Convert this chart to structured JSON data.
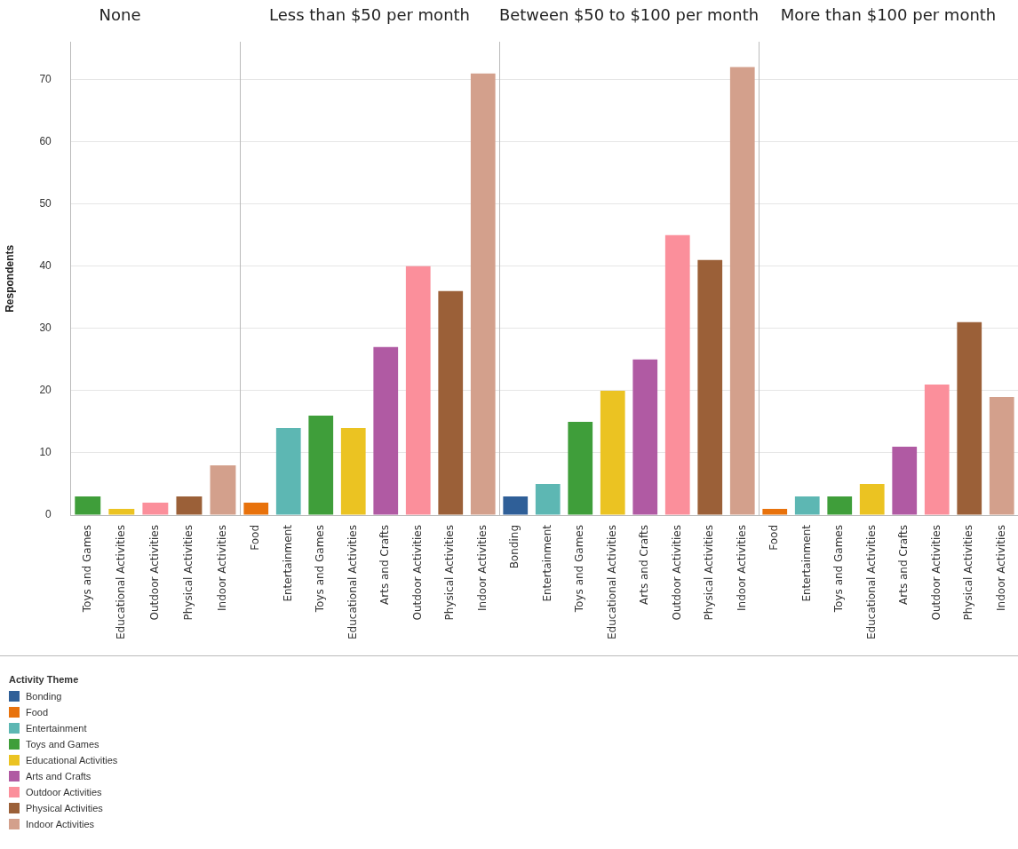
{
  "chart_data": [
    {
      "type": "bar",
      "title": "None",
      "ylabel": "Respondents",
      "categories": [
        "Toys and Games",
        "Educational Activities",
        "Outdoor Activities",
        "Physical Activities",
        "Indoor Activities"
      ],
      "stacked": true,
      "ylim": [
        0,
        76
      ],
      "yticks": [
        0,
        10,
        20,
        30,
        40,
        50,
        60,
        70
      ],
      "grid": "y",
      "legend": "bottom left",
      "legend_title": "Activity Theme",
      "series": [
        {
          "name": "Bonding",
          "color": "#2f5f98",
          "values": [
            null,
            null,
            null,
            null,
            null
          ]
        },
        {
          "name": "Food",
          "color": "#e8720c",
          "values": [
            null,
            null,
            null,
            null,
            null
          ]
        },
        {
          "name": "Entertainment",
          "color": "#5db7b3",
          "values": [
            null,
            null,
            null,
            null,
            null
          ]
        },
        {
          "name": "Toys and Games",
          "color": "#3f9e3a",
          "values": [
            3,
            null,
            null,
            null,
            null
          ]
        },
        {
          "name": "Educational Activities",
          "color": "#ebc322",
          "values": [
            null,
            1,
            null,
            null,
            null
          ]
        },
        {
          "name": "Arts and Crafts",
          "color": "#b05aa3",
          "values": [
            null,
            null,
            null,
            null,
            null
          ]
        },
        {
          "name": "Outdoor Activities",
          "color": "#fb8f9b",
          "values": [
            null,
            null,
            2,
            null,
            null
          ]
        },
        {
          "name": "Physical Activities",
          "color": "#9b6038",
          "values": [
            null,
            null,
            null,
            3,
            null
          ]
        },
        {
          "name": "Indoor Activities",
          "color": "#d3a08c",
          "values": [
            null,
            null,
            null,
            null,
            8
          ]
        }
      ]
    },
    {
      "type": "bar",
      "title": "Less than $50 per month",
      "categories": [
        "Food",
        "Entertainment",
        "Toys and Games",
        "Educational Activities",
        "Arts and Crafts",
        "Outdoor Activities",
        "Physical Activities",
        "Indoor Activities"
      ],
      "stacked": true,
      "ylim": [
        0,
        76
      ],
      "yticks": [
        0,
        10,
        20,
        30,
        40,
        50,
        60,
        70
      ],
      "tick_labels": "x",
      "grid": "y",
      "series": [
        {
          "color": "#e8720c",
          "values": [
            2,
            null,
            null,
            null,
            null,
            null,
            null,
            null
          ]
        },
        {
          "color": "#5db7b3",
          "values": [
            null,
            14,
            null,
            null,
            null,
            null,
            null,
            null
          ]
        },
        {
          "color": "#3f9e3a",
          "values": [
            null,
            null,
            16,
            null,
            null,
            null,
            null,
            null
          ]
        },
        {
          "color": "#ebc322",
          "values": [
            null,
            null,
            null,
            14,
            null,
            null,
            null,
            null
          ]
        },
        {
          "color": "#b05aa3",
          "values": [
            null,
            null,
            null,
            null,
            27,
            null,
            null,
            null
          ]
        },
        {
          "color": "#fb8f9b",
          "values": [
            null,
            null,
            null,
            null,
            null,
            40,
            null,
            null
          ]
        },
        {
          "color": "#9b6038",
          "values": [
            null,
            null,
            null,
            null,
            null,
            null,
            36,
            null
          ]
        },
        {
          "color": "#d3a08c",
          "values": [
            null,
            null,
            null,
            null,
            null,
            null,
            null,
            71
          ]
        }
      ]
    },
    {
      "type": "bar",
      "title": "Between $50 to $100 per month",
      "categories": [
        "Bonding",
        "Entertainment",
        "Toys and Games",
        "Educational Activities",
        "Arts and Crafts",
        "Outdoor Activities",
        "Physical Activities",
        "Indoor Activities"
      ],
      "stacked": true,
      "ylim": [
        0,
        76
      ],
      "yticks": [
        0,
        10,
        20,
        30,
        40,
        50,
        60,
        70
      ],
      "tick_labels": "x",
      "grid": "y",
      "series": [
        {
          "color": "#2f5f98",
          "values": [
            3,
            null,
            null,
            null,
            null,
            null,
            null,
            null
          ]
        },
        {
          "color": "#5db7b3",
          "values": [
            null,
            5,
            null,
            null,
            null,
            null,
            null,
            null
          ]
        },
        {
          "color": "#3f9e3a",
          "values": [
            null,
            null,
            15,
            null,
            null,
            null,
            null,
            null
          ]
        },
        {
          "color": "#ebc322",
          "values": [
            null,
            null,
            null,
            20,
            null,
            null,
            null,
            null
          ]
        },
        {
          "color": "#b05aa3",
          "values": [
            null,
            null,
            null,
            null,
            25,
            null,
            null,
            null
          ]
        },
        {
          "color": "#fb8f9b",
          "values": [
            null,
            null,
            null,
            null,
            null,
            45,
            null,
            null
          ]
        },
        {
          "color": "#9b6038",
          "values": [
            null,
            null,
            null,
            null,
            null,
            null,
            41,
            null
          ]
        },
        {
          "color": "#d3a08c",
          "values": [
            null,
            null,
            null,
            null,
            null,
            null,
            null,
            72
          ]
        }
      ]
    },
    {
      "type": "bar",
      "title": "More than $100 per month",
      "categories": [
        "Food",
        "Entertainment",
        "Toys and Games",
        "Educational Activities",
        "Arts and Crafts",
        "Outdoor Activities",
        "Physical Activities",
        "Indoor Activities"
      ],
      "stacked": true,
      "ylim": [
        0,
        76
      ],
      "yticks": [
        0,
        10,
        20,
        30,
        40,
        50,
        60,
        70
      ],
      "tick_labels": "x",
      "grid": "y",
      "series": [
        {
          "color": "#e8720c",
          "values": [
            1,
            null,
            null,
            null,
            null,
            null,
            null,
            null
          ]
        },
        {
          "color": "#5db7b3",
          "values": [
            null,
            3,
            null,
            null,
            null,
            null,
            null,
            null
          ]
        },
        {
          "color": "#3f9e3a",
          "values": [
            null,
            null,
            3,
            null,
            null,
            null,
            null,
            null
          ]
        },
        {
          "color": "#ebc322",
          "values": [
            null,
            null,
            null,
            5,
            null,
            null,
            null,
            null
          ]
        },
        {
          "color": "#b05aa3",
          "values": [
            null,
            null,
            null,
            null,
            11,
            null,
            null,
            null
          ]
        },
        {
          "color": "#fb8f9b",
          "values": [
            null,
            null,
            null,
            null,
            null,
            21,
            null,
            null
          ]
        },
        {
          "color": "#9b6038",
          "values": [
            null,
            null,
            null,
            null,
            null,
            null,
            31,
            null
          ]
        },
        {
          "color": "#d3a08c",
          "values": [
            null,
            null,
            null,
            null,
            null,
            null,
            null,
            19
          ]
        }
      ]
    }
  ]
}
